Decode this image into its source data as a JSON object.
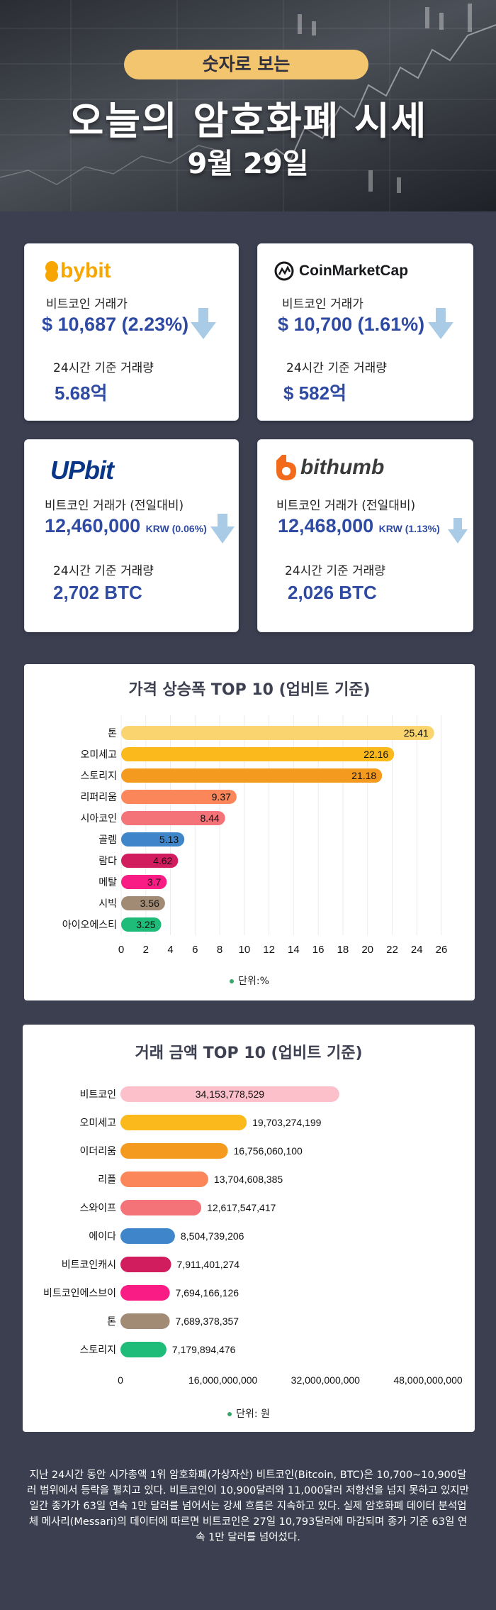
{
  "header": {
    "pill": "숫자로 보는",
    "title": "오늘의 암호화폐 시세",
    "date": "9월 29일"
  },
  "exchanges": {
    "bybit": {
      "logo": "bybit",
      "price_label": "비트코인 거래가",
      "price": "$ 10,687 (2.23%)",
      "volume_label": "24시간 기준 거래량",
      "volume": "5.68억",
      "trend_icon": "down-arrow-icon"
    },
    "cmc": {
      "logo": "CoinMarketCap",
      "price_label": "비트코인 거래가",
      "price": "$ 10,700 (1.61%)",
      "volume_label": "24시간 기준 거래량",
      "volume": "$ 582억",
      "trend_icon": "down-arrow-icon"
    },
    "upbit": {
      "logo": "UPbit",
      "price_label": "비트코인 거래가 (전일대비)",
      "price": "12,460,000",
      "price_unit": "KRW (0.06%)",
      "volume_label": "24시간 기준 거래량",
      "volume": "2,702 BTC",
      "trend_icon": "down-arrow-icon"
    },
    "bithumb": {
      "logo": "bithumb",
      "price_label": "비트코인 거래가 (전일대비)",
      "price": "12,468,000",
      "price_unit": "KRW  (1.13%)",
      "volume_label": "24시간 기준 거래량",
      "volume": "2,026 BTC",
      "trend_icon": "down-arrow-icon"
    }
  },
  "chart_data": [
    {
      "type": "bar",
      "orientation": "horizontal",
      "title": "가격 상승폭 TOP 10 (업비트 기준)",
      "categories": [
        "톤",
        "오미세고",
        "스토리지",
        "리퍼리움",
        "시아코인",
        "골렘",
        "람다",
        "메탈",
        "시빅",
        "아이오에스티"
      ],
      "values": [
        25.41,
        22.16,
        21.18,
        9.37,
        8.44,
        5.13,
        4.62,
        3.7,
        3.56,
        3.25
      ],
      "value_labels": [
        "25.41",
        "22.16",
        "21.18",
        "9.37",
        "8.44",
        "5.13",
        "4.62",
        "3.7",
        "3.56",
        "3.25"
      ],
      "colors": [
        "#f9d46f",
        "#fbb91c",
        "#f49a1f",
        "#fa8659",
        "#f47378",
        "#3e85c9",
        "#d11c5d",
        "#fa1c85",
        "#a18b74",
        "#1fbb78"
      ],
      "xlim": [
        0,
        26
      ],
      "xticks": [
        "0",
        "2",
        "4",
        "6",
        "8",
        "10",
        "12",
        "14",
        "16",
        "18",
        "20",
        "22",
        "24",
        "26"
      ],
      "grid": true,
      "legend": "단위:%"
    },
    {
      "type": "bar",
      "orientation": "horizontal",
      "title": "거래 금액 TOP 10 (업비트 기준)",
      "categories": [
        "비트코인",
        "오미세고",
        "이더리움",
        "리플",
        "스와이프",
        "에이다",
        "비트코인캐시",
        "비트코인에스브이",
        "톤",
        "스토리지"
      ],
      "values": [
        34153778529,
        19703274199,
        16756060100,
        13704608385,
        12617547417,
        8504739206,
        7911401274,
        7694166126,
        7689378357,
        7179894476
      ],
      "value_labels": [
        "34,153,778,529",
        "19,703,274,199",
        "16,756,060,100",
        "13,704,608,385",
        "12,617,547,417",
        "8,504,739,206",
        "7,911,401,274",
        "7,694,166,126",
        "7,689,378,357",
        "7,179,894,476"
      ],
      "colors": [
        "#fbc0c9",
        "#fbb91c",
        "#f49a1f",
        "#fa8659",
        "#f47378",
        "#3e85c9",
        "#d11c5d",
        "#fa1c85",
        "#a18b74",
        "#1fbb78"
      ],
      "xlim": [
        0,
        48000000000
      ],
      "xticks": [
        "0",
        "16,000,000,000",
        "32,000,000,000",
        "48,000,000,000"
      ],
      "grid": false,
      "legend": "단위: 원"
    }
  ],
  "footer": "지난 24시간 동안 시가총액 1위 암호화폐(가상자산) 비트코인(Bitcoin, BTC)은 10,700~10,900달러 범위에서 등락을 펼치고 있다. 비트코인이 10,900달러와 11,000달러 저항선을 넘지 못하고 있지만 일간 종가가 63일 연속 1만 달러를 넘어서는 강세 흐름은 지속하고 있다. 실제 암호화폐 데이터 분석업체 메사리(Messari)의 데이터에 따르면 비트코인은 27일 10,793달러에 마감되며 종가 기준 63일 연속 1만 달러를 넘어섰다."
}
